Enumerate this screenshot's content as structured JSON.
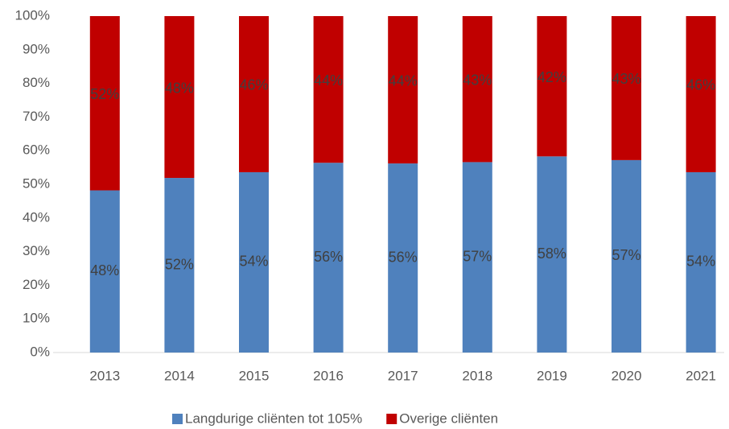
{
  "chart_data": {
    "type": "stacked_bar",
    "categories": [
      "2013",
      "2014",
      "2015",
      "2016",
      "2017",
      "2018",
      "2019",
      "2020",
      "2021"
    ],
    "series": [
      {
        "name": "Langdurige cliënten tot 105%",
        "color": "#4f81bd",
        "values": [
          48.2,
          51.9,
          53.6,
          56.4,
          56.2,
          56.6,
          58.3,
          57.2,
          53.6
        ],
        "value_labels": [
          "48%",
          "52%",
          "54%",
          "56%",
          "56%",
          "57%",
          "58%",
          "57%",
          "54%"
        ]
      },
      {
        "name": "Overige cliënten",
        "color": "#c00000",
        "values": [
          51.8,
          48.1,
          46.4,
          43.6,
          43.8,
          43.4,
          41.7,
          42.8,
          46.4
        ],
        "value_labels": [
          "52%",
          "48%",
          "46%",
          "44%",
          "44%",
          "43%",
          "42%",
          "43%",
          "46%"
        ]
      }
    ],
    "ylim": [
      0,
      100
    ],
    "yticks": [
      {
        "value": 0,
        "label": "0%"
      },
      {
        "value": 10,
        "label": "10%"
      },
      {
        "value": 20,
        "label": "20%"
      },
      {
        "value": 30,
        "label": "30%"
      },
      {
        "value": 40,
        "label": "40%"
      },
      {
        "value": 50,
        "label": "50%"
      },
      {
        "value": 60,
        "label": "60%"
      },
      {
        "value": 70,
        "label": "70%"
      },
      {
        "value": 80,
        "label": "80%"
      },
      {
        "value": 90,
        "label": "90%"
      },
      {
        "value": 100,
        "label": "100%"
      }
    ],
    "grid": false,
    "legend": "bottom"
  }
}
